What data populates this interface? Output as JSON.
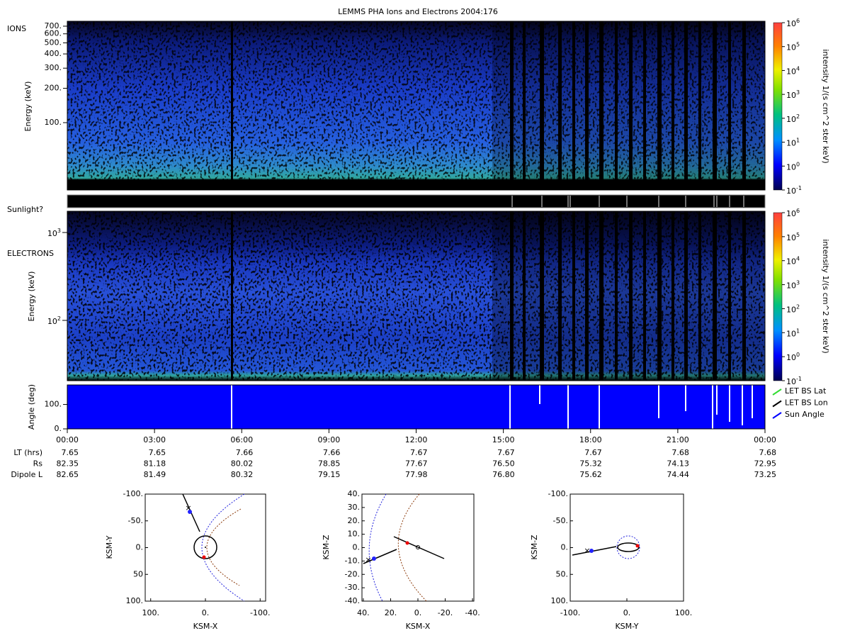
{
  "title": "LEMMS PHA Ions and Electrons  2004:176",
  "ions": {
    "label": "IONS",
    "ylabel": "Energy (keV)",
    "ylim": [
      25.7,
      773
    ],
    "yticks": [
      {
        "value": 100,
        "label": "100."
      },
      {
        "value": 200,
        "label": "200."
      },
      {
        "value": 300,
        "label": "300."
      },
      {
        "value": 400,
        "label": "400."
      },
      {
        "value": 500,
        "label": "500."
      },
      {
        "value": 600,
        "label": "600."
      },
      {
        "value": 700,
        "label": "700."
      }
    ]
  },
  "colorbar_ions": {
    "label": "intensity 1/(s cm^2 ster keV)",
    "lim": [
      0.1,
      1000000
    ],
    "ticks": [
      {
        "value": 0.1,
        "base": "10",
        "exp": "-1"
      },
      {
        "value": 1,
        "base": "10",
        "exp": "0"
      },
      {
        "value": 10,
        "base": "10",
        "exp": "1"
      },
      {
        "value": 100,
        "base": "10",
        "exp": "2"
      },
      {
        "value": 1000,
        "base": "10",
        "exp": "3"
      },
      {
        "value": 10000,
        "base": "10",
        "exp": "4"
      },
      {
        "value": 100000,
        "base": "10",
        "exp": "5"
      },
      {
        "value": 1000000,
        "base": "10",
        "exp": "6"
      }
    ]
  },
  "sunlight": {
    "label": "Sunlight?"
  },
  "electrons": {
    "label": "ELECTRONS",
    "ylabel": "Energy (keV)",
    "ylim": [
      20.6,
      1745
    ],
    "yticks": [
      {
        "value": 100,
        "base": "10",
        "exp": "2"
      },
      {
        "value": 1000,
        "base": "10",
        "exp": "3"
      }
    ]
  },
  "colorbar_electrons": {
    "label": "intensity 1/(s cm^2 ster keV)",
    "lim": [
      0.1,
      1000000
    ],
    "ticks": [
      {
        "value": 0.1,
        "base": "10",
        "exp": "-1"
      },
      {
        "value": 1,
        "base": "10",
        "exp": "0"
      },
      {
        "value": 10,
        "base": "10",
        "exp": "1"
      },
      {
        "value": 100,
        "base": "10",
        "exp": "2"
      },
      {
        "value": 1000,
        "base": "10",
        "exp": "3"
      },
      {
        "value": 10000,
        "base": "10",
        "exp": "4"
      },
      {
        "value": 100000,
        "base": "10",
        "exp": "5"
      },
      {
        "value": 1000000,
        "base": "10",
        "exp": "6"
      }
    ]
  },
  "angle": {
    "ylabel": "Angle (deg)",
    "ylim": [
      0,
      180
    ],
    "yticks": [
      {
        "value": 0,
        "label": "0."
      },
      {
        "value": 100,
        "label": "100."
      }
    ],
    "legend": [
      {
        "name": "LET BS Lat",
        "color": "#33dd33"
      },
      {
        "name": "LET BS Lon",
        "color": "#000000"
      },
      {
        "name": "Sun Angle",
        "color": "#0000ff"
      }
    ]
  },
  "time_axis": {
    "ticks": [
      "00:00",
      "03:00",
      "06:00",
      "09:00",
      "12:00",
      "15:00",
      "18:00",
      "21:00",
      "00:00"
    ]
  },
  "ephemeris": [
    {
      "label": "LT (hrs)",
      "values": [
        "7.65",
        "7.65",
        "7.66",
        "7.66",
        "7.67",
        "7.67",
        "7.67",
        "7.68",
        "7.68"
      ]
    },
    {
      "label": "Rs",
      "values": [
        "82.35",
        "81.18",
        "80.02",
        "78.85",
        "77.67",
        "76.50",
        "75.32",
        "74.13",
        "72.95"
      ]
    },
    {
      "label": "Dipole L",
      "values": [
        "82.65",
        "81.49",
        "80.32",
        "79.15",
        "77.98",
        "76.80",
        "75.62",
        "74.44",
        "73.25"
      ]
    }
  ],
  "orbits": [
    {
      "xlabel": "KSM-X",
      "ylabel": "KSM-Y",
      "xlim": [
        110,
        -110
      ],
      "ylim": [
        -100,
        100
      ],
      "xticks": [
        {
          "value": 100,
          "label": "100."
        },
        {
          "value": 0,
          "label": "0."
        },
        {
          "value": -100,
          "label": "-100."
        }
      ],
      "yticks": [
        {
          "value": -100,
          "label": "-100."
        },
        {
          "value": -50,
          "label": "-50."
        },
        {
          "value": 0,
          "label": "0."
        },
        {
          "value": 50,
          "label": "50"
        },
        {
          "value": 100,
          "label": "100."
        }
      ]
    },
    {
      "xlabel": "KSM-X",
      "ylabel": "KSM-Z",
      "xlim": [
        41,
        -41
      ],
      "ylim": [
        40,
        -40
      ],
      "xticks": [
        {
          "value": 40,
          "label": "40."
        },
        {
          "value": 20,
          "label": "20."
        },
        {
          "value": 0,
          "label": "0."
        },
        {
          "value": -20,
          "label": "-20."
        },
        {
          "value": -40,
          "label": "-40."
        }
      ],
      "yticks": [
        {
          "value": 40,
          "label": "40."
        },
        {
          "value": 30,
          "label": "30."
        },
        {
          "value": 20,
          "label": "20."
        },
        {
          "value": 10,
          "label": "10."
        },
        {
          "value": 0,
          "label": "0."
        },
        {
          "value": -10,
          "label": "-10."
        },
        {
          "value": -20,
          "label": "-20."
        },
        {
          "value": -30,
          "label": "-30."
        },
        {
          "value": -40,
          "label": "-40."
        }
      ]
    },
    {
      "xlabel": "KSM-Y",
      "ylabel": "KSM-Z",
      "xlim": [
        -100,
        100
      ],
      "ylim": [
        -100,
        100
      ],
      "xticks": [
        {
          "value": -100,
          "label": "-100."
        },
        {
          "value": 0,
          "label": "0."
        },
        {
          "value": 100,
          "label": "100."
        }
      ],
      "yticks": [
        {
          "value": -100,
          "label": "-100."
        },
        {
          "value": -50,
          "label": "-50."
        },
        {
          "value": 0,
          "label": "0."
        },
        {
          "value": 50,
          "label": "50."
        },
        {
          "value": 100,
          "label": "100."
        }
      ]
    }
  ]
}
